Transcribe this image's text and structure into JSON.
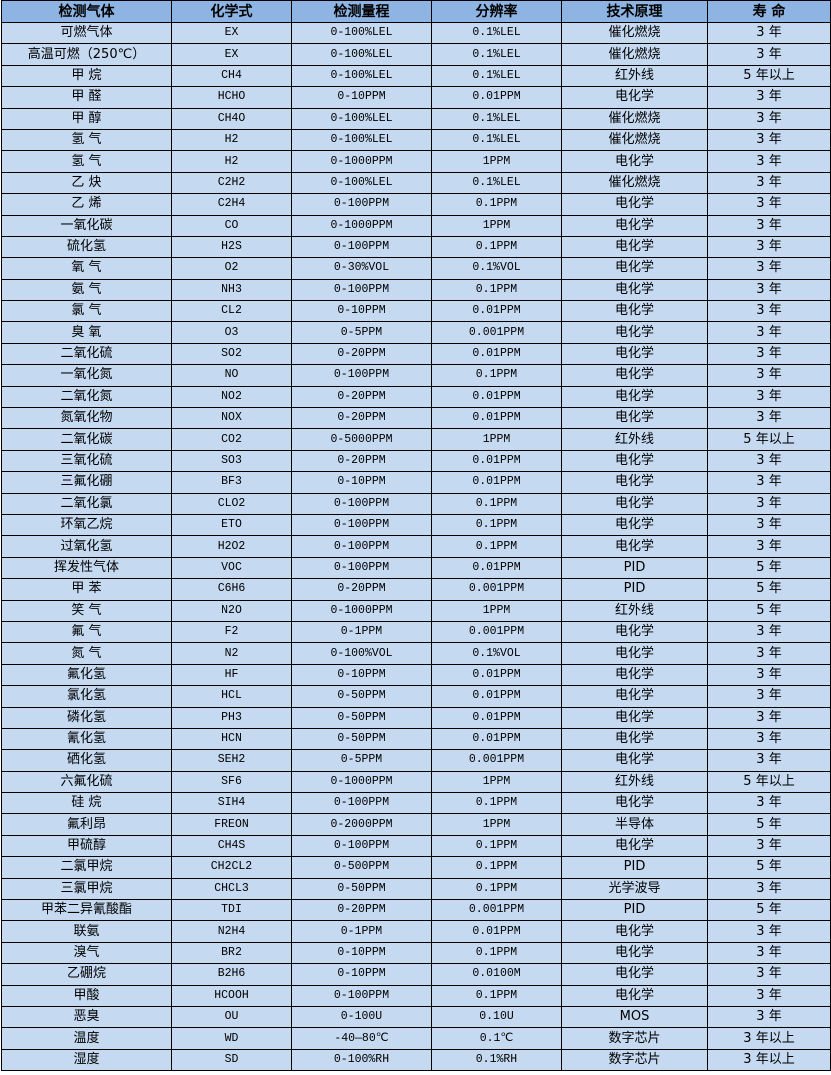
{
  "headers": [
    "检测气体",
    "化学式",
    "检测量程",
    "分辨率",
    "技术原理",
    "寿 命"
  ],
  "rows": [
    [
      "可燃气体",
      "EX",
      "0-100%LEL",
      "0.1%LEL",
      "催化燃烧",
      "3 年"
    ],
    [
      "高温可燃（250℃）",
      "EX",
      "0-100%LEL",
      "0.1%LEL",
      "催化燃烧",
      "3 年"
    ],
    [
      "甲 烷",
      "CH4",
      "0-100%LEL",
      "0.1%LEL",
      "红外线",
      "5 年以上"
    ],
    [
      "甲 醛",
      "HCHO",
      "0-10PPM",
      "0.01PPM",
      "电化学",
      "3 年"
    ],
    [
      "甲 醇",
      "CH4O",
      "0-100%LEL",
      "0.1%LEL",
      "催化燃烧",
      "3 年"
    ],
    [
      "氢 气",
      "H2",
      "0-100%LEL",
      "0.1%LEL",
      "催化燃烧",
      "3 年"
    ],
    [
      "氢 气",
      "H2",
      "0-1000PPM",
      "1PPM",
      "电化学",
      "3 年"
    ],
    [
      "乙 炔",
      "C2H2",
      "0-100%LEL",
      "0.1%LEL",
      "催化燃烧",
      "3 年"
    ],
    [
      "乙 烯",
      "C2H4",
      "0-100PPM",
      "0.1PPM",
      "电化学",
      "3 年"
    ],
    [
      "一氧化碳",
      "CO",
      "0-1000PPM",
      "1PPM",
      "电化学",
      "3 年"
    ],
    [
      "硫化氢",
      "H2S",
      "0-100PPM",
      "0.1PPM",
      "电化学",
      "3 年"
    ],
    [
      "氧 气",
      "O2",
      "0-30%VOL",
      "0.1%VOL",
      "电化学",
      "3 年"
    ],
    [
      "氨 气",
      "NH3",
      "0-100PPM",
      "0.1PPM",
      "电化学",
      "3 年"
    ],
    [
      "氯 气",
      "CL2",
      "0-10PPM",
      "0.01PPM",
      "电化学",
      "3 年"
    ],
    [
      "臭 氧",
      "O3",
      "0-5PPM",
      "0.001PPM",
      "电化学",
      "3 年"
    ],
    [
      "二氧化硫",
      "SO2",
      "0-20PPM",
      "0.01PPM",
      "电化学",
      "3 年"
    ],
    [
      "一氧化氮",
      "NO",
      "0-100PPM",
      "0.1PPM",
      "电化学",
      "3 年"
    ],
    [
      "二氧化氮",
      "NO2",
      "0-20PPM",
      "0.01PPM",
      "电化学",
      "3 年"
    ],
    [
      "氮氧化物",
      "NOX",
      "0-20PPM",
      "0.01PPM",
      "电化学",
      "3 年"
    ],
    [
      "二氧化碳",
      "CO2",
      "0-5000PPM",
      "1PPM",
      "红外线",
      "5 年以上"
    ],
    [
      "三氧化硫",
      "SO3",
      "0-20PPM",
      "0.01PPM",
      "电化学",
      "3 年"
    ],
    [
      "三氟化硼",
      "BF3",
      "0-10PPM",
      "0.01PPM",
      "电化学",
      "3 年"
    ],
    [
      "二氧化氯",
      "CLO2",
      "0-100PPM",
      "0.1PPM",
      "电化学",
      "3 年"
    ],
    [
      "环氧乙烷",
      "ETO",
      "0-100PPM",
      "0.1PPM",
      "电化学",
      "3 年"
    ],
    [
      "过氧化氢",
      "H2O2",
      "0-100PPM",
      "0.1PPM",
      "电化学",
      "3 年"
    ],
    [
      "挥发性气体",
      "VOC",
      "0-100PPM",
      "0.01PPM",
      "PID",
      "5 年"
    ],
    [
      "甲 苯",
      "C6H6",
      "0-20PPM",
      "0.001PPM",
      "PID",
      "5 年"
    ],
    [
      "笑 气",
      "N2O",
      "0-1000PPM",
      "1PPM",
      "红外线",
      "5 年"
    ],
    [
      "氟 气",
      "F2",
      "0-1PPM",
      "0.001PPM",
      "电化学",
      "3 年"
    ],
    [
      "氮 气",
      "N2",
      "0-100%VOL",
      "0.1%VOL",
      "电化学",
      "3 年"
    ],
    [
      "氟化氢",
      "HF",
      "0-10PPM",
      "0.01PPM",
      "电化学",
      "3 年"
    ],
    [
      "氯化氢",
      "HCL",
      "0-50PPM",
      "0.01PPM",
      "电化学",
      "3 年"
    ],
    [
      "磷化氢",
      "PH3",
      "0-50PPM",
      "0.01PPM",
      "电化学",
      "3 年"
    ],
    [
      "氰化氢",
      "HCN",
      "0-50PPM",
      "0.01PPM",
      "电化学",
      "3 年"
    ],
    [
      "硒化氢",
      "SEH2",
      "0-5PPM",
      "0.001PPM",
      "电化学",
      "3 年"
    ],
    [
      "六氟化硫",
      "SF6",
      "0-1000PPM",
      "1PPM",
      "红外线",
      "5 年以上"
    ],
    [
      "硅 烷",
      "SIH4",
      "0-100PPM",
      "0.1PPM",
      "电化学",
      "3 年"
    ],
    [
      "氟利昂",
      "FREON",
      "0-2000PPM",
      "1PPM",
      "半导体",
      "5 年"
    ],
    [
      "甲硫醇",
      "CH4S",
      "0-100PPM",
      "0.1PPM",
      "电化学",
      "3 年"
    ],
    [
      "二氯甲烷",
      "CH2CL2",
      "0-500PPM",
      "0.1PPM",
      "PID",
      "5 年"
    ],
    [
      "三氯甲烷",
      "CHCL3",
      "0-50PPM",
      "0.1PPM",
      "光学波导",
      "3 年"
    ],
    [
      "甲苯二异氰酸酯",
      "TDI",
      "0-20PPM",
      "0.001PPM",
      "PID",
      "5 年"
    ],
    [
      "联氨",
      "N2H4",
      "0-1PPM",
      "0.01PPM",
      "电化学",
      "3 年"
    ],
    [
      "溴气",
      "BR2",
      "0-10PPM",
      "0.1PPM",
      "电化学",
      "3 年"
    ],
    [
      "乙硼烷",
      "B2H6",
      "0-10PPM",
      "0.0100M",
      "电化学",
      "3 年"
    ],
    [
      "甲酸",
      "HCOOH",
      "0-100PPM",
      "0.1PPM",
      "电化学",
      "3 年"
    ],
    [
      "恶臭",
      "OU",
      "0-100U",
      "0.10U",
      "MOS",
      "3 年"
    ],
    [
      "温度",
      "WD",
      "-40—80℃",
      "0.1℃",
      "数字芯片",
      "3 年以上"
    ],
    [
      "湿度",
      "SD",
      "0-100%RH",
      "0.1%RH",
      "数字芯片",
      "3 年以上"
    ]
  ],
  "colors": {
    "header_bg": "#8db4e2",
    "row_bg": "#c5d9f1",
    "border": "#000000"
  }
}
